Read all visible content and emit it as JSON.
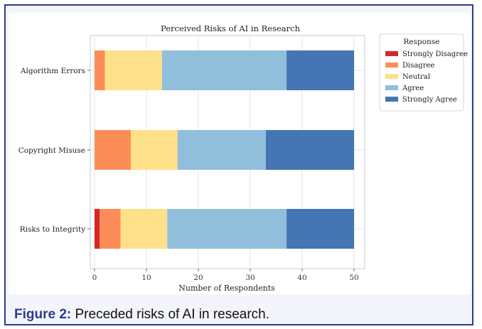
{
  "caption": {
    "label": "Figure 2:",
    "text": " Preceded risks of AI in research."
  },
  "chart_data": {
    "type": "bar",
    "orientation": "horizontal",
    "stacked": true,
    "title": "Perceived Risks of AI in Research",
    "xlabel": "Number of Respondents",
    "ylabel": "",
    "xlim": [
      0,
      52
    ],
    "xticks": [
      0,
      10,
      20,
      30,
      40,
      50
    ],
    "grid": true,
    "legend_title": "Response",
    "legend_position": "right",
    "categories": [
      "Algorithm Errors",
      "Copyright Misuse",
      "Risks to Integrity"
    ],
    "series": [
      {
        "name": "Strongly Disagree",
        "color": "#d62728",
        "values": [
          0,
          0,
          1
        ]
      },
      {
        "name": "Disagree",
        "color": "#fc8d59",
        "values": [
          2,
          7,
          4
        ]
      },
      {
        "name": "Neutral",
        "color": "#fee08b",
        "values": [
          11,
          9,
          9
        ]
      },
      {
        "name": "Agree",
        "color": "#91bfdb",
        "values": [
          24,
          17,
          23
        ]
      },
      {
        "name": "Strongly Agree",
        "color": "#4575b4",
        "values": [
          13,
          17,
          13
        ]
      }
    ]
  }
}
